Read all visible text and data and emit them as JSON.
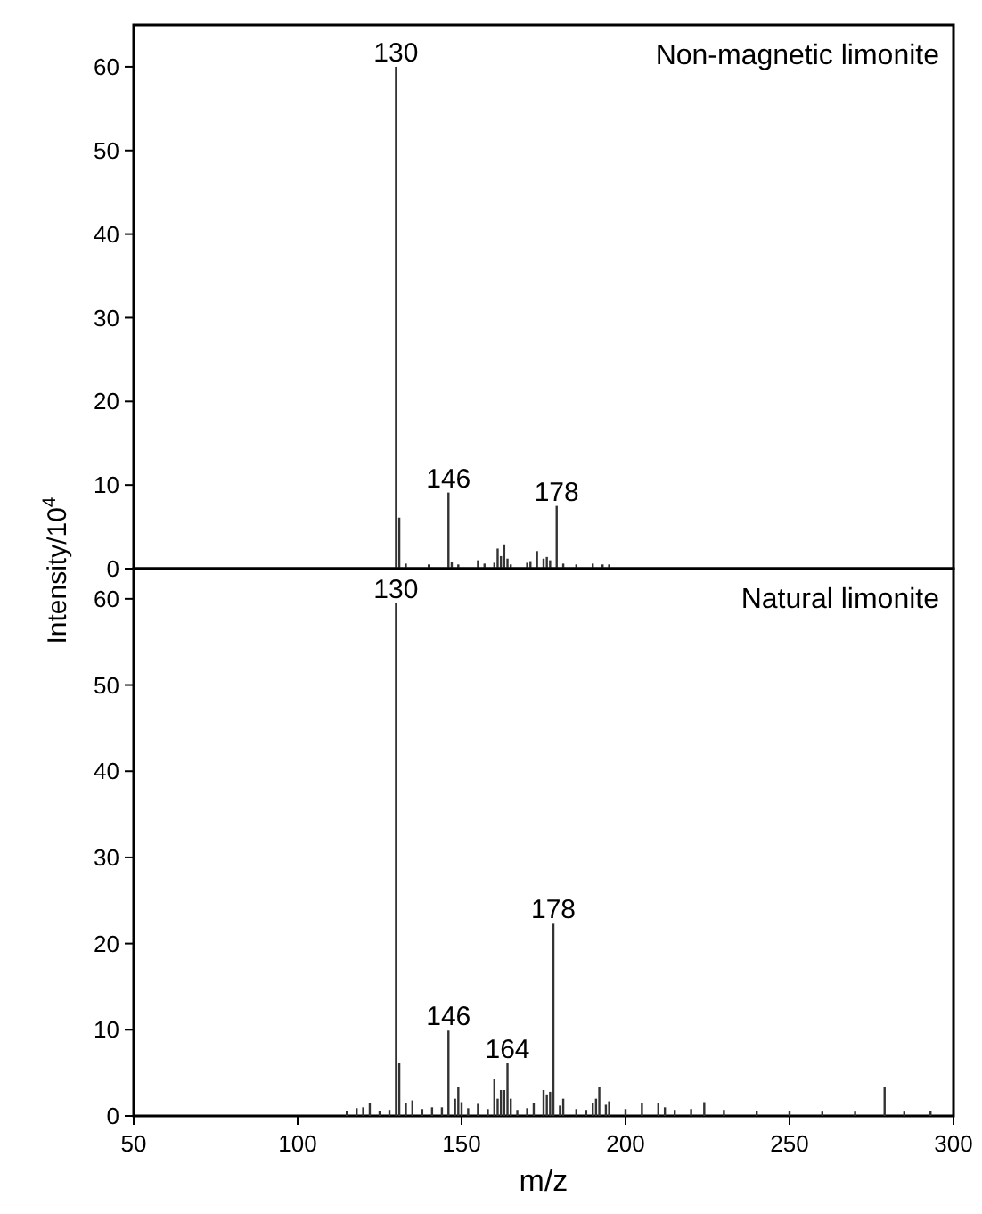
{
  "chart_data": [
    {
      "type": "bar",
      "title": "Non-magnetic limonite",
      "ylabel": "Intensity/10$^{4}$",
      "xlim": [
        50,
        300
      ],
      "ylim": [
        0,
        65
      ],
      "yticks": [
        0,
        10,
        20,
        30,
        40,
        50,
        60
      ],
      "tick_labels": "y",
      "color": "#333333",
      "x": [
        130,
        131,
        133,
        140,
        146,
        147,
        149,
        155,
        157,
        160,
        161,
        162,
        163,
        164,
        165,
        170,
        171,
        173,
        175,
        176,
        177,
        179,
        181,
        185,
        190,
        193,
        195
      ],
      "values": [
        60,
        6.1,
        0.6,
        0.5,
        9.1,
        0.8,
        0.5,
        1.0,
        0.6,
        0.7,
        2.4,
        1.5,
        2.9,
        1.2,
        0.5,
        0.7,
        0.9,
        2.1,
        1.2,
        1.4,
        1.0,
        7.5,
        0.6,
        0.5,
        0.6,
        0.5,
        0.5
      ],
      "annotations": [
        {
          "text": "130",
          "x": 130,
          "y": 60
        },
        {
          "text": "146",
          "x": 146,
          "y": 9.1
        },
        {
          "text": "178",
          "x": 179,
          "y": 7.5
        }
      ]
    },
    {
      "type": "bar",
      "title": "Natural limonite",
      "xlabel": "m/z",
      "xlim": [
        50,
        300
      ],
      "xticks": [
        50,
        100,
        150,
        200,
        250,
        300
      ],
      "ylim": [
        0,
        63.5
      ],
      "yticks": [
        0,
        10,
        20,
        30,
        40,
        50,
        60
      ],
      "color": "#333333",
      "x": [
        115,
        118,
        120,
        122,
        125,
        128,
        130,
        131,
        133,
        135,
        138,
        141,
        144,
        146,
        148,
        149,
        150,
        152,
        155,
        158,
        160,
        161,
        162,
        163,
        164,
        165,
        167,
        170,
        172,
        175,
        176,
        177,
        178,
        180,
        181,
        185,
        188,
        190,
        191,
        192,
        194,
        195,
        200,
        205,
        210,
        212,
        215,
        220,
        224,
        230,
        240,
        250,
        260,
        270,
        279,
        285,
        293
      ],
      "values": [
        0.6,
        0.9,
        1.0,
        1.5,
        0.6,
        0.7,
        59.5,
        6.1,
        1.5,
        1.8,
        0.8,
        1.0,
        1.0,
        9.9,
        2.0,
        3.4,
        1.6,
        0.9,
        1.4,
        0.8,
        4.3,
        2.0,
        3.0,
        3.0,
        6.1,
        2.0,
        0.7,
        0.9,
        1.5,
        3.0,
        2.5,
        2.8,
        22.3,
        1.2,
        2.0,
        0.8,
        0.7,
        1.5,
        2.0,
        3.4,
        1.3,
        1.7,
        0.8,
        1.5,
        1.5,
        1.0,
        0.7,
        0.8,
        1.6,
        0.7,
        0.6,
        0.6,
        0.5,
        0.5,
        3.4,
        0.5,
        0.6
      ],
      "annotations": [
        {
          "text": "130",
          "x": 130,
          "y": 59.5
        },
        {
          "text": "146",
          "x": 146,
          "y": 9.9
        },
        {
          "text": "164",
          "x": 164,
          "y": 6.1
        },
        {
          "text": "178",
          "x": 178,
          "y": 22.3
        }
      ]
    }
  ]
}
